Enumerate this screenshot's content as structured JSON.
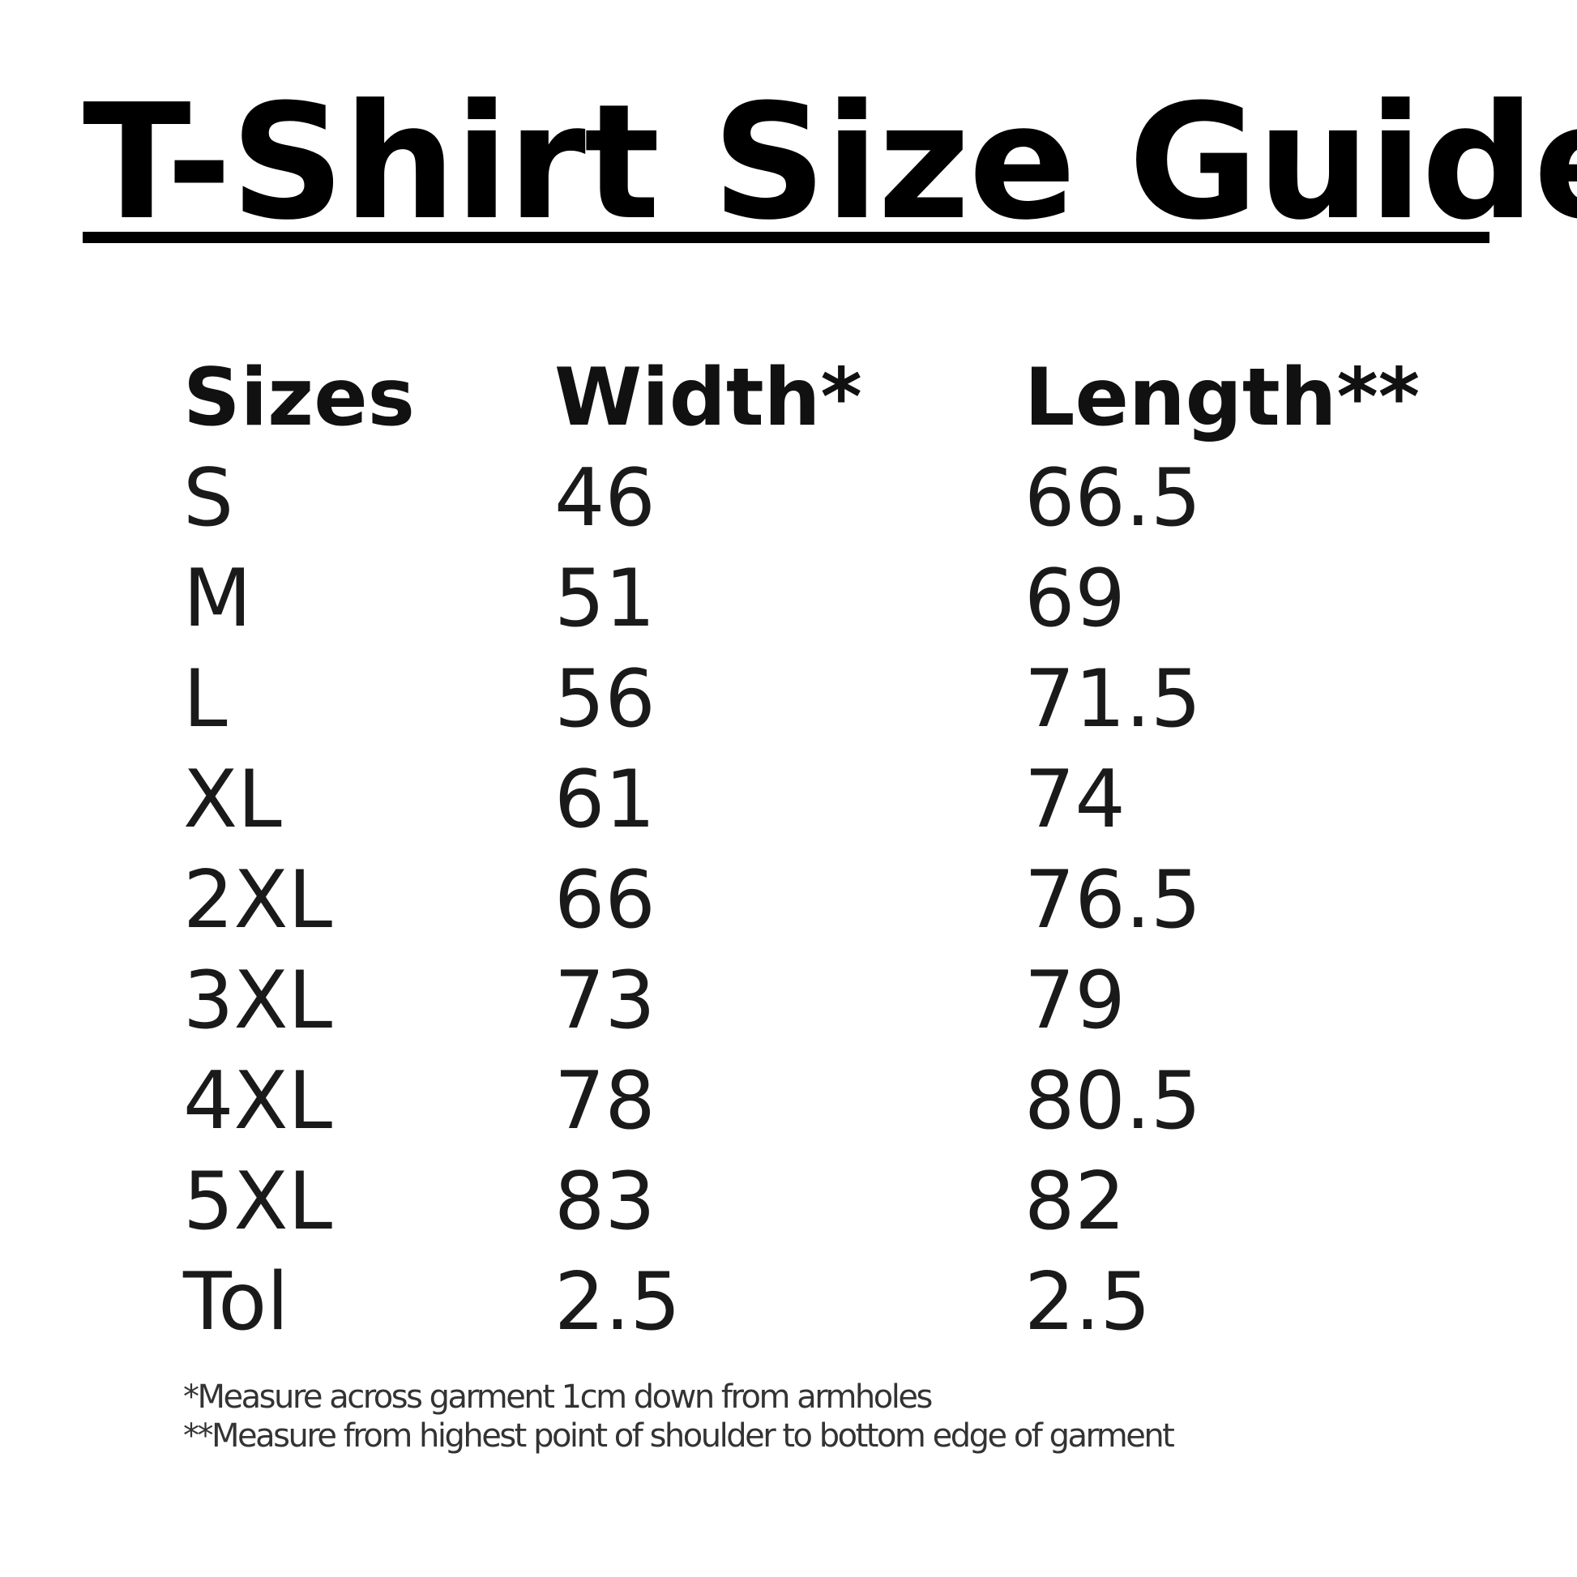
{
  "title": "T-Shirt Size Guide",
  "table": {
    "headers": [
      "Sizes",
      "Width*",
      "Length**"
    ],
    "rows": [
      [
        "S",
        "46",
        "66.5"
      ],
      [
        "M",
        "51",
        "69"
      ],
      [
        "L",
        "56",
        "71.5"
      ],
      [
        "XL",
        "61",
        "74"
      ],
      [
        "2XL",
        "66",
        "76.5"
      ],
      [
        "3XL",
        "73",
        "79"
      ],
      [
        "4XL",
        "78",
        "80.5"
      ],
      [
        "5XL",
        "83",
        "82"
      ],
      [
        "Tol",
        "2.5",
        "2.5"
      ]
    ]
  },
  "footnotes": [
    "*Measure across garment 1cm down from armholes",
    "**Measure from highest point of shoulder to bottom edge of garment"
  ]
}
